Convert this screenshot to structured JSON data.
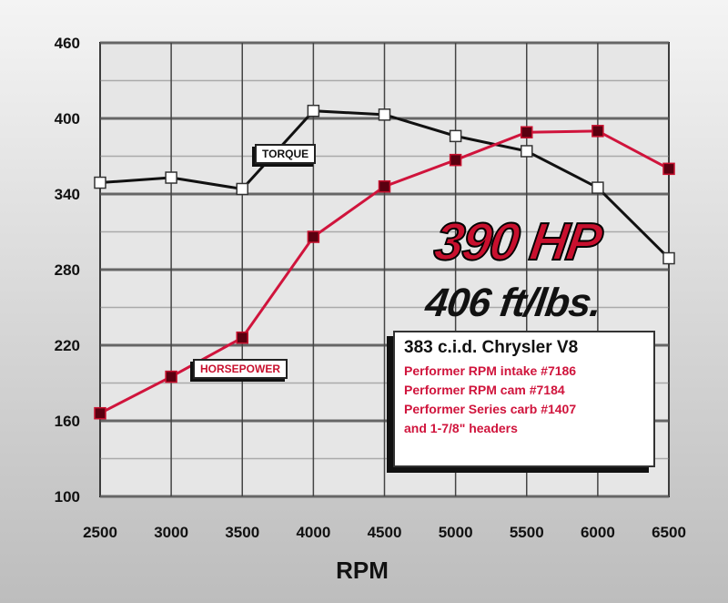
{
  "chart_data": {
    "type": "line",
    "xlabel": "RPM",
    "ylabel": "",
    "x": [
      2500,
      3000,
      3500,
      4000,
      4500,
      5000,
      5500,
      6000,
      6500
    ],
    "xticks": [
      "2500",
      "3000",
      "3500",
      "4000",
      "4500",
      "5000",
      "5500",
      "6000",
      "6500"
    ],
    "yticks": [
      "460",
      "400",
      "340",
      "280",
      "220",
      "160",
      "100"
    ],
    "ylim": [
      100,
      460
    ],
    "xlim": [
      2500,
      6500
    ],
    "grid": true,
    "series": [
      {
        "name": "TORQUE",
        "color": "#111111",
        "marker": "open-square",
        "values": [
          349,
          353,
          344,
          406,
          403,
          386,
          374,
          345,
          289
        ]
      },
      {
        "name": "HORSEPOWER",
        "color": "#d0143c",
        "marker": "filled-square",
        "values": [
          166,
          195,
          226,
          306,
          346,
          367,
          389,
          390,
          360
        ]
      }
    ],
    "annotations": {
      "hp": "390 HP",
      "torque": "406 ft/lbs.",
      "spec_title": "383 c.i.d. Chrysler V8",
      "spec_lines": [
        "Performer RPM intake #7186",
        "Performer RPM cam #7184",
        "Performer Series carb #1407",
        "and 1-7/8\" headers"
      ]
    }
  }
}
